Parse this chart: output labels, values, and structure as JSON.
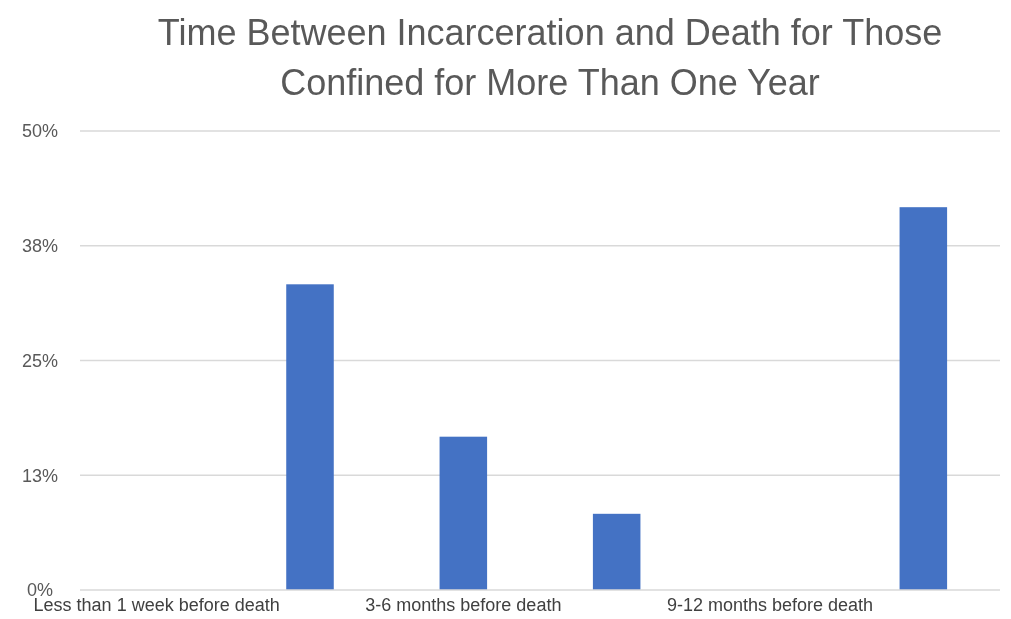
{
  "chart_data": {
    "type": "bar",
    "title": "Time Between Incarceration and Death for Those Confined for More Than One Year",
    "categories": [
      "Less than 1 week before death",
      null,
      "3-6 months before death",
      null,
      "9-12 months before death",
      null
    ],
    "values": [
      0,
      33.3,
      16.7,
      8.3,
      0,
      41.7
    ],
    "color": "#4472c4",
    "ylim": [
      0,
      50
    ],
    "yticks": [
      {
        "value": 0,
        "label": "0%"
      },
      {
        "value": 12.5,
        "label": "13%"
      },
      {
        "value": 25,
        "label": "25%"
      },
      {
        "value": 37.5,
        "label": "38%"
      },
      {
        "value": 50,
        "label": "50%"
      }
    ],
    "grid": "y"
  }
}
